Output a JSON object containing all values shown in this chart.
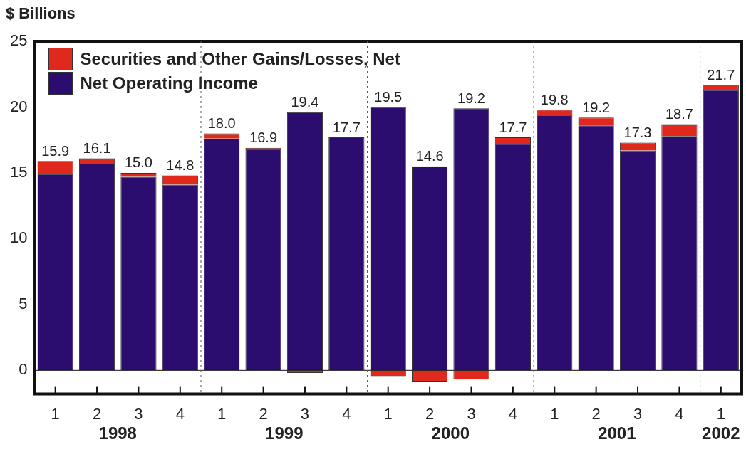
{
  "chart_data": {
    "type": "bar",
    "stacked": true,
    "ylabel": "$ Billions",
    "categories": [
      "1",
      "2",
      "3",
      "4",
      "1",
      "2",
      "3",
      "4",
      "1",
      "2",
      "3",
      "4",
      "1",
      "2",
      "3",
      "4",
      "1"
    ],
    "series": [
      {
        "name": "Net Operating Income",
        "color": "#2a0d6e",
        "values": [
          14.9,
          15.7,
          14.7,
          14.1,
          17.6,
          16.8,
          19.6,
          17.7,
          20.0,
          15.5,
          19.9,
          17.2,
          19.4,
          18.6,
          16.7,
          17.8,
          21.3
        ]
      },
      {
        "name": "Securities and Other Gains/Losses, Net",
        "color": "#e0281c",
        "values": [
          1.0,
          0.4,
          0.3,
          0.7,
          0.4,
          0.1,
          -0.2,
          0.0,
          -0.5,
          -0.9,
          -0.7,
          0.5,
          0.4,
          0.6,
          0.6,
          0.9,
          0.4
        ]
      }
    ],
    "totals": [
      "15.9",
      "16.1",
      "15.0",
      "14.8",
      "18.0",
      "16.9",
      "19.4",
      "17.7",
      "19.5",
      "14.6",
      "19.2",
      "17.7",
      "19.8",
      "19.2",
      "17.3",
      "18.7",
      "21.7"
    ],
    "annotations": [
      "1998",
      "1999",
      "2000",
      "2001",
      "2002"
    ],
    "ylim": [
      -1.8,
      25
    ],
    "yticks": [
      0,
      5,
      10,
      15,
      20,
      25
    ],
    "legend": "top left"
  }
}
